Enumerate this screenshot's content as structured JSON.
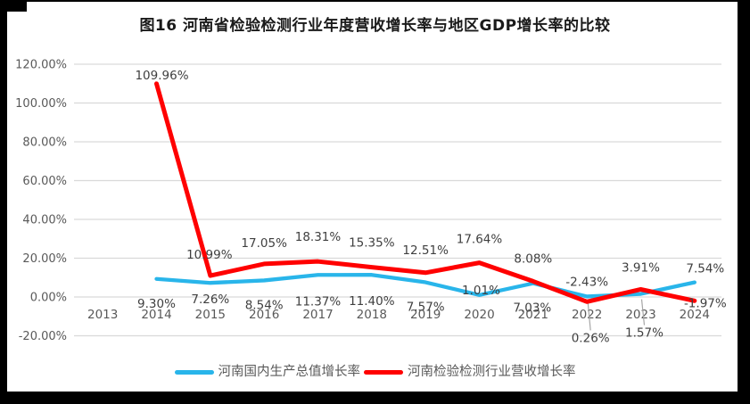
{
  "colors": {
    "gdp_line": "#29B5EA",
    "industry_line": "#FF0000",
    "gridline": "#D9D9D9",
    "axis_text": "#595959",
    "label_text": "#3F3F3F",
    "leader_line": "#A6A6A6",
    "scan_edge": "#000000",
    "title_text": "#1A1A1A"
  },
  "chart_data": {
    "type": "line",
    "title": "图16  河南省检验检测行业年度营收增长率与地区GDP增长率的比较",
    "categories": [
      "2013",
      "2014",
      "2015",
      "2016",
      "2017",
      "2018",
      "2019",
      "2020",
      "2021",
      "2022",
      "2023",
      "2024"
    ],
    "series": [
      {
        "name": "河南国内生产总值增长率",
        "color": "#29B5EA",
        "values": [
          null,
          9.3,
          7.26,
          8.54,
          11.37,
          11.4,
          7.57,
          1.01,
          7.03,
          0.26,
          1.57,
          7.54
        ],
        "labels": [
          null,
          "9.30%",
          "7.26%",
          "8.54%",
          "11.37%",
          "11.40%",
          "7.57%",
          "1.01%",
          "7.03%",
          "0.26%",
          "1.57%",
          "7.54%"
        ],
        "label_offsets": [
          null,
          [
            0,
            32
          ],
          [
            0,
            23
          ],
          [
            0,
            32
          ],
          [
            0,
            34
          ],
          [
            0,
            34
          ],
          [
            0,
            32
          ],
          [
            2,
            -1
          ],
          [
            -1,
            32
          ],
          [
            4,
            51
          ],
          [
            4,
            48
          ],
          [
            12,
            -11
          ]
        ],
        "leader_indices": [
          9,
          10
        ]
      },
      {
        "name": "河南检验检测行业营收增长率",
        "color": "#FF0000",
        "values": [
          null,
          109.96,
          10.99,
          17.05,
          18.31,
          15.35,
          12.51,
          17.64,
          8.08,
          -2.43,
          3.91,
          -1.97
        ],
        "labels": [
          null,
          "109.96%",
          "10.99%",
          "17.05%",
          "18.31%",
          "15.35%",
          "12.51%",
          "17.64%",
          "8.08%",
          "-2.43%",
          "3.91%",
          "-1.97%"
        ],
        "label_offsets": [
          null,
          [
            6,
            -5
          ],
          [
            -1,
            -19
          ],
          [
            0,
            -19
          ],
          [
            0,
            -23
          ],
          [
            0,
            -23
          ],
          [
            0,
            -21
          ],
          [
            0,
            -22
          ],
          [
            0,
            -21
          ],
          [
            0,
            -18
          ],
          [
            0,
            -20
          ],
          [
            12,
            7
          ]
        ],
        "leader_indices": []
      }
    ],
    "y_axis": {
      "tick_labels": [
        "120.00%",
        "100.00%",
        "80.00%",
        "60.00%",
        "40.00%",
        "20.00%",
        "0.00%",
        "-20.00%"
      ],
      "tick_values": [
        120,
        100,
        80,
        60,
        40,
        20,
        0,
        -20
      ],
      "min": -20,
      "max": 120
    },
    "x_axis": {
      "label_row_y": "below zero line"
    },
    "grid": true,
    "legend_position": "bottom"
  }
}
